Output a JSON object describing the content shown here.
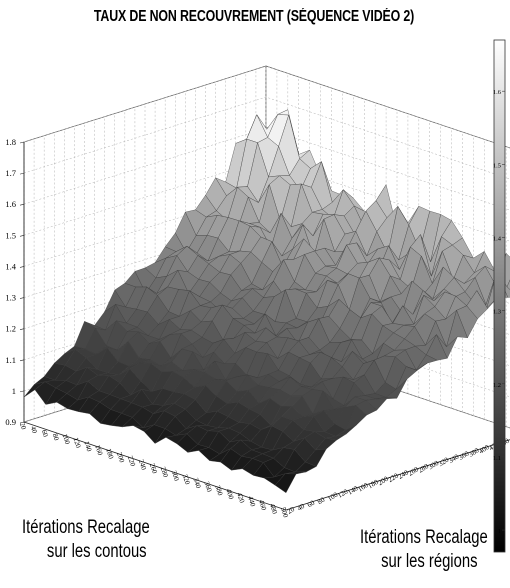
{
  "chart_data": {
    "type": "surface",
    "title": "TAUX DE NON RECOUVREMENT  (SÉQUENCE VIDÉO 2)",
    "xlabel_line1": "Itérations Recalage",
    "xlabel_line2": "sur les contous",
    "ylabel_line1": "Itérations Recalage",
    "ylabel_line2": "sur les régions",
    "zlim": [
      0.9,
      1.8
    ],
    "z_ticks": [
      "0.9",
      "1",
      "1.1",
      "1.2",
      "1.3",
      "1.4",
      "1.5",
      "1.6",
      "1.7",
      "1.8"
    ],
    "contour_ticks": [
      "20",
      "40",
      "60",
      "80",
      "100",
      "120",
      "140",
      "160",
      "180",
      "200",
      "220",
      "240",
      "260",
      "280",
      "300",
      "320",
      "340",
      "360",
      "380",
      "400",
      "420",
      "440",
      "460",
      "480",
      "500"
    ],
    "region_ticks": [
      "20",
      "40",
      "60",
      "80",
      "100",
      "120",
      "140",
      "160",
      "180",
      "200",
      "220",
      "240",
      "260",
      "280",
      "300",
      "320",
      "340",
      "360",
      "380",
      "400",
      "420",
      "440",
      "460",
      "480",
      "500"
    ],
    "colorbar_ticks": [
      "1",
      "1.1",
      "1.2",
      "1.3",
      "1.4",
      "1.5",
      "1.6"
    ],
    "colormap": [
      "#000000",
      "#ffffff"
    ],
    "grid": true,
    "surface_trend": {
      "z_at_20_20": 1.0,
      "z_at_500_20": 0.97,
      "z_at_20_500": 1.55,
      "z_at_500_500": 1.4,
      "z_max": 1.78
    }
  }
}
